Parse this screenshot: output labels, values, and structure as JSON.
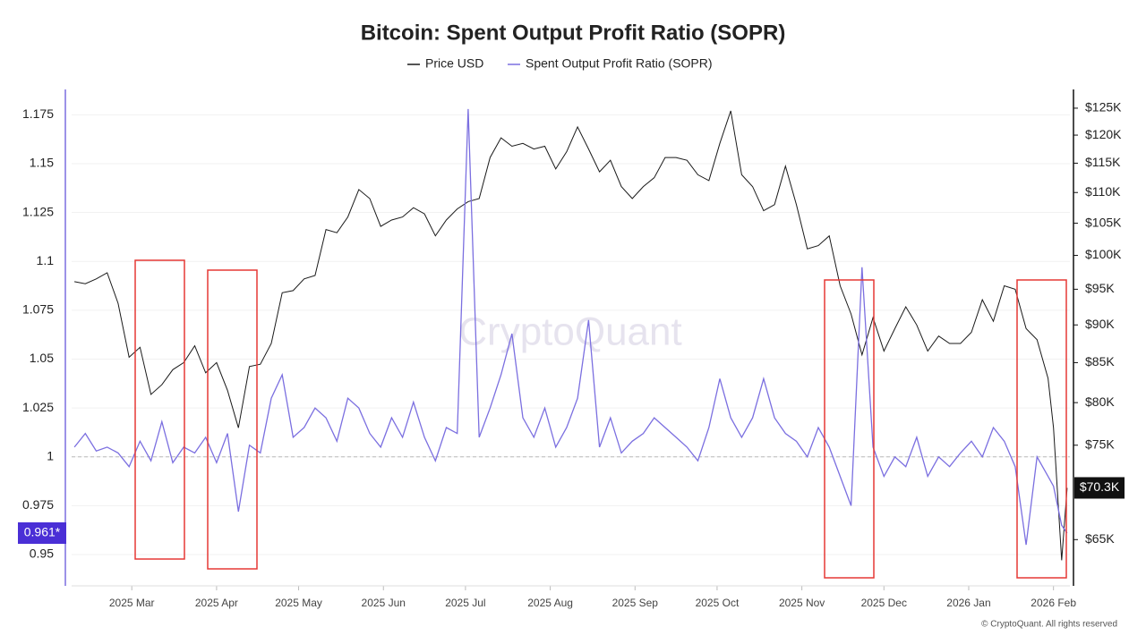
{
  "chart_data": {
    "type": "line",
    "title": "Bitcoin: Spent Output Profit Ratio (SOPR)",
    "watermark": "CryptoQuant",
    "credit": "© CryptoQuant. All rights reserved",
    "grid": true,
    "hline": 1,
    "x": [
      "2025-02-08",
      "2025-02-12",
      "2025-02-16",
      "2025-02-20",
      "2025-02-24",
      "2025-02-28",
      "2025-03-04",
      "2025-03-08",
      "2025-03-12",
      "2025-03-16",
      "2025-03-20",
      "2025-03-24",
      "2025-03-28",
      "2025-04-01",
      "2025-04-05",
      "2025-04-09",
      "2025-04-13",
      "2025-04-17",
      "2025-04-21",
      "2025-04-25",
      "2025-04-29",
      "2025-05-03",
      "2025-05-07",
      "2025-05-11",
      "2025-05-15",
      "2025-05-19",
      "2025-05-23",
      "2025-05-27",
      "2025-05-31",
      "2025-06-04",
      "2025-06-08",
      "2025-06-12",
      "2025-06-16",
      "2025-06-20",
      "2025-06-24",
      "2025-06-28",
      "2025-07-02",
      "2025-07-06",
      "2025-07-10",
      "2025-07-14",
      "2025-07-18",
      "2025-07-22",
      "2025-07-26",
      "2025-07-30",
      "2025-08-03",
      "2025-08-07",
      "2025-08-11",
      "2025-08-15",
      "2025-08-19",
      "2025-08-23",
      "2025-08-27",
      "2025-08-31",
      "2025-09-04",
      "2025-09-08",
      "2025-09-12",
      "2025-09-16",
      "2025-09-20",
      "2025-09-24",
      "2025-09-28",
      "2025-10-02",
      "2025-10-06",
      "2025-10-10",
      "2025-10-14",
      "2025-10-18",
      "2025-10-22",
      "2025-10-26",
      "2025-10-30",
      "2025-11-03",
      "2025-11-07",
      "2025-11-11",
      "2025-11-15",
      "2025-11-19",
      "2025-11-23",
      "2025-11-27",
      "2025-12-01",
      "2025-12-05",
      "2025-12-09",
      "2025-12-13",
      "2025-12-17",
      "2025-12-21",
      "2025-12-25",
      "2025-12-29",
      "2026-01-02",
      "2026-01-06",
      "2026-01-10",
      "2026-01-14",
      "2026-01-18",
      "2026-01-22",
      "2026-01-26",
      "2026-01-30",
      "2026-02-01",
      "2026-02-04",
      "2026-02-06"
    ],
    "xlim": [
      "2025-02-07",
      "2026-02-07"
    ],
    "xticks": [
      {
        "value": "2025-03-01",
        "label": "2025 Mar"
      },
      {
        "value": "2025-04-01",
        "label": "2025 Apr"
      },
      {
        "value": "2025-05-01",
        "label": "2025 May"
      },
      {
        "value": "2025-06-01",
        "label": "2025 Jun"
      },
      {
        "value": "2025-07-01",
        "label": "2025 Jul"
      },
      {
        "value": "2025-08-01",
        "label": "2025 Aug"
      },
      {
        "value": "2025-09-01",
        "label": "2025 Sep"
      },
      {
        "value": "2025-10-01",
        "label": "2025 Oct"
      },
      {
        "value": "2025-11-01",
        "label": "2025 Nov"
      },
      {
        "value": "2025-12-01",
        "label": "2025 Dec"
      },
      {
        "value": "2026-01-01",
        "label": "2026 Jan"
      },
      {
        "value": "2026-02-01",
        "label": "2026 Feb"
      }
    ],
    "ylim": [
      0.934,
      1.188
    ],
    "yticks": [
      0.95,
      0.975,
      1,
      1.025,
      1.05,
      1.075,
      1.1,
      1.125,
      1.15,
      1.175
    ],
    "y2lim": [
      60.6,
      128.6
    ],
    "y2log": true,
    "y2ticks": [
      {
        "value": 65,
        "label": "$65K"
      },
      {
        "value": 75,
        "label": "$75K"
      },
      {
        "value": 80,
        "label": "$80K"
      },
      {
        "value": 85,
        "label": "$85K"
      },
      {
        "value": 90,
        "label": "$90K"
      },
      {
        "value": 95,
        "label": "$95K"
      },
      {
        "value": 100,
        "label": "$100K"
      },
      {
        "value": 105,
        "label": "$105K"
      },
      {
        "value": 110,
        "label": "$110K"
      },
      {
        "value": 115,
        "label": "$115K"
      },
      {
        "value": 120,
        "label": "$120K"
      },
      {
        "value": 125,
        "label": "$125K"
      }
    ],
    "series": [
      {
        "name": "Price USD",
        "color": "#1a1a1a",
        "axis": "y2",
        "current_label": {
          "value": 70.3,
          "label": "$70.3K"
        },
        "values": [
          96.1,
          95.8,
          96.5,
          97.4,
          93,
          85.7,
          87,
          81,
          82.2,
          84.1,
          85,
          87.2,
          83.7,
          85,
          81.5,
          77,
          84.5,
          84.8,
          87.5,
          94.5,
          94.8,
          96.5,
          97,
          104,
          103.5,
          106,
          110.5,
          109,
          104.5,
          105.5,
          106,
          107.5,
          106.5,
          103,
          105.5,
          107.3,
          108.5,
          109,
          116,
          119.5,
          118,
          118.5,
          117.5,
          118,
          114,
          117,
          121.5,
          117.5,
          113.5,
          115.5,
          111,
          109,
          111,
          112.5,
          116,
          116,
          115.5,
          113,
          112,
          118.5,
          124.5,
          113,
          111,
          107,
          108,
          114.5,
          108,
          101,
          101.5,
          103,
          95.5,
          91.5,
          86,
          91,
          86.5,
          89.5,
          92.5,
          90,
          86.5,
          88.5,
          87.5,
          87.5,
          89,
          93.5,
          90.5,
          95.5,
          95,
          89.5,
          88,
          83,
          77,
          63,
          70.3
        ]
      },
      {
        "name": "Spent Output Profit Ratio (SOPR)",
        "color": "#7b6fe0",
        "axis": "y",
        "current_label": {
          "value": 0.961,
          "label": "0.961*"
        },
        "values": [
          1.005,
          1.012,
          1.003,
          1.005,
          1.002,
          0.995,
          1.008,
          0.998,
          1.018,
          0.997,
          1.005,
          1.002,
          1.01,
          0.997,
          1.012,
          0.972,
          1.006,
          1.002,
          1.03,
          1.042,
          1.01,
          1.015,
          1.025,
          1.02,
          1.008,
          1.03,
          1.025,
          1.012,
          1.005,
          1.02,
          1.01,
          1.028,
          1.01,
          0.998,
          1.015,
          1.012,
          1.178,
          1.01,
          1.025,
          1.042,
          1.063,
          1.02,
          1.01,
          1.025,
          1.005,
          1.015,
          1.03,
          1.07,
          1.005,
          1.02,
          1.002,
          1.008,
          1.012,
          1.02,
          1.015,
          1.01,
          1.005,
          0.998,
          1.015,
          1.04,
          1.02,
          1.01,
          1.02,
          1.04,
          1.02,
          1.012,
          1.008,
          1.0,
          1.015,
          1.005,
          0.99,
          0.975,
          1.097,
          1.005,
          0.99,
          1.0,
          0.995,
          1.01,
          0.99,
          1.0,
          0.995,
          1.002,
          1.008,
          1.0,
          1.015,
          1.008,
          0.995,
          0.955,
          1.0,
          0.99,
          0.985,
          0.965,
          0.961
        ]
      }
    ]
  }
}
